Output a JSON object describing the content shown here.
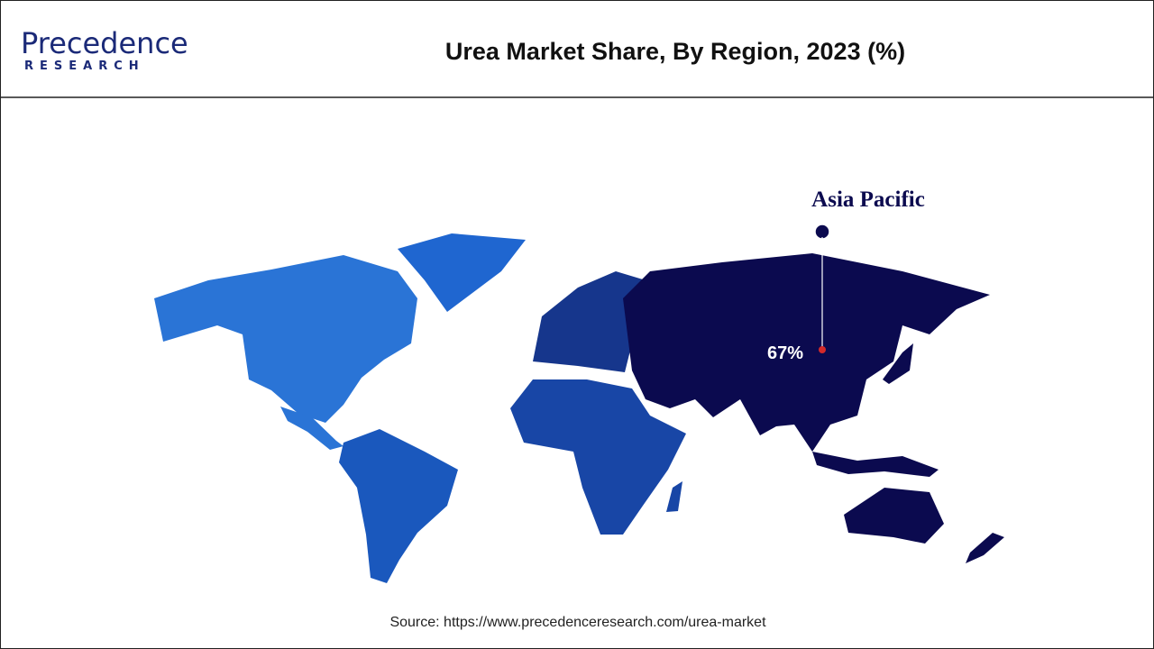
{
  "header": {
    "logo_name": "Precedence",
    "logo_sub": "RESEARCH",
    "title": "Urea Market Share, By Region, 2023 (%)"
  },
  "map": {
    "callout": {
      "region": "Asia Pacific",
      "value": 67,
      "value_label": "67%"
    }
  },
  "footer": {
    "source": "Source: https://www.precedenceresearch.com/urea-market"
  }
}
